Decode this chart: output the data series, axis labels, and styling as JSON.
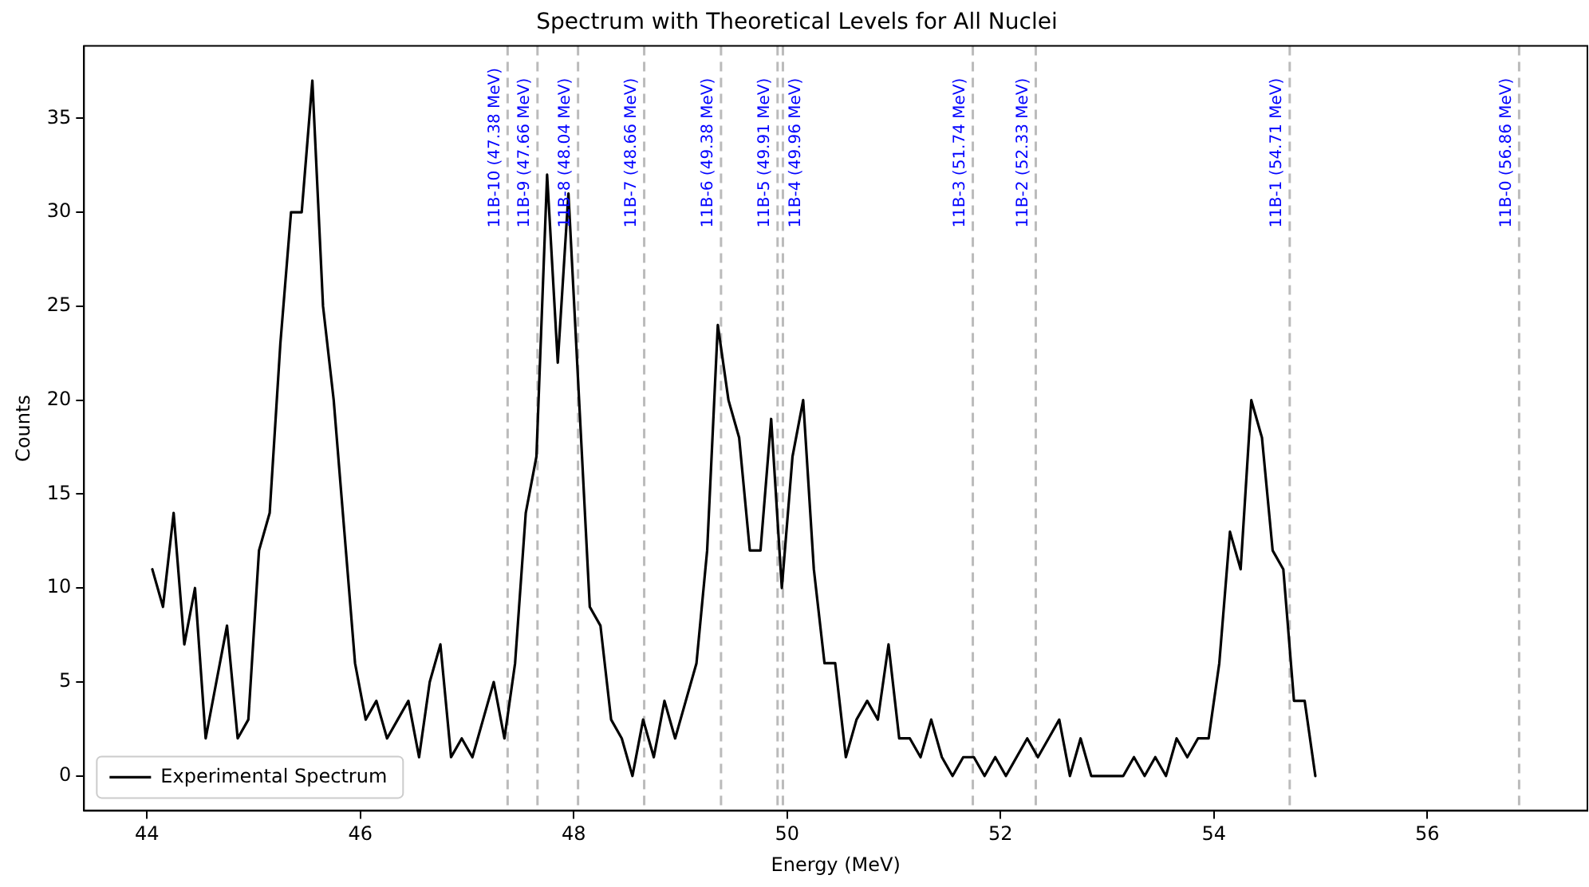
{
  "chart_data": {
    "type": "line",
    "title": "Spectrum with Theoretical Levels for All Nuclei",
    "xlabel": "Energy (MeV)",
    "ylabel": "Counts",
    "series": [
      {
        "name": "Experimental Spectrum",
        "color": "#000000",
        "x": [
          44.05,
          44.15,
          44.25,
          44.35,
          44.45,
          44.55,
          44.65,
          44.75,
          44.85,
          44.95,
          45.05,
          45.15,
          45.25,
          45.35,
          45.45,
          45.55,
          45.65,
          45.75,
          45.85,
          45.95,
          46.05,
          46.15,
          46.25,
          46.35,
          46.45,
          46.55,
          46.65,
          46.75,
          46.85,
          46.95,
          47.05,
          47.15,
          47.25,
          47.35,
          47.45,
          47.55,
          47.65,
          47.75,
          47.85,
          47.95,
          48.05,
          48.15,
          48.25,
          48.35,
          48.45,
          48.55,
          48.65,
          48.75,
          48.85,
          48.95,
          49.05,
          49.15,
          49.25,
          49.35,
          49.45,
          49.55,
          49.65,
          49.75,
          49.85,
          49.95,
          50.05,
          50.15,
          50.25,
          50.35,
          50.45,
          50.55,
          50.65,
          50.75,
          50.85,
          50.95,
          51.05,
          51.15,
          51.25,
          51.35,
          51.45,
          51.55,
          51.65,
          51.75,
          51.85,
          51.95,
          52.05,
          52.15,
          52.25,
          52.35,
          52.45,
          52.55,
          52.65,
          52.75,
          52.85,
          52.95,
          53.05,
          53.15,
          53.25,
          53.35,
          53.45,
          53.55,
          53.65,
          53.75,
          53.85,
          53.95,
          54.05,
          54.15,
          54.25,
          54.35,
          54.45,
          54.55,
          54.65,
          54.75,
          54.85,
          54.95
        ],
        "values": [
          11,
          9,
          14,
          7,
          10,
          2,
          5,
          8,
          2,
          3,
          12,
          14,
          23,
          30,
          30,
          37,
          25,
          20,
          13,
          6,
          3,
          4,
          2,
          3,
          4,
          1,
          5,
          7,
          1,
          2,
          1,
          3,
          5,
          2,
          6,
          14,
          17,
          32,
          22,
          31,
          20,
          9,
          8,
          3,
          2,
          0,
          3,
          1,
          4,
          2,
          4,
          6,
          12,
          24,
          20,
          18,
          12,
          12,
          19,
          10,
          17,
          20,
          11,
          6,
          6,
          1,
          3,
          4,
          3,
          7,
          2,
          2,
          1,
          3,
          1,
          0,
          1,
          1,
          0,
          1,
          0,
          1,
          2,
          1,
          2,
          3,
          0,
          2,
          0,
          0,
          0,
          0,
          1,
          0,
          1,
          0,
          2,
          1,
          2,
          2,
          6,
          13,
          11,
          20,
          18,
          12,
          11,
          4,
          4,
          0
        ]
      }
    ],
    "xlim": [
      43.41,
      57.5
    ],
    "xticks": [
      44,
      46,
      48,
      50,
      52,
      54,
      56
    ],
    "ylim": [
      -1.85,
      38.85
    ],
    "yticks": [
      0,
      5,
      10,
      15,
      20,
      25,
      30,
      35
    ],
    "ref_lines": [
      {
        "axis": "x",
        "value": 47.38,
        "label": "11B-10 (47.38 MeV)",
        "color": "#bbbbbb",
        "line_style": "dashed"
      },
      {
        "axis": "x",
        "value": 47.66,
        "label": "11B-9 (47.66 MeV)",
        "color": "#bbbbbb",
        "line_style": "dashed"
      },
      {
        "axis": "x",
        "value": 48.04,
        "label": "11B-8 (48.04 MeV)",
        "color": "#bbbbbb",
        "line_style": "dashed"
      },
      {
        "axis": "x",
        "value": 48.66,
        "label": "11B-7 (48.66 MeV)",
        "color": "#bbbbbb",
        "line_style": "dashed"
      },
      {
        "axis": "x",
        "value": 49.38,
        "label": "11B-6 (49.38 MeV)",
        "color": "#bbbbbb",
        "line_style": "dashed"
      },
      {
        "axis": "x",
        "value": 49.91,
        "label": "11B-5 (49.91 MeV)",
        "color": "#bbbbbb",
        "line_style": "dashed"
      },
      {
        "axis": "x",
        "value": 49.96,
        "label": "11B-4 (49.96 MeV)",
        "color": "#bbbbbb",
        "line_style": "dashed"
      },
      {
        "axis": "x",
        "value": 51.74,
        "label": "11B-3 (51.74 MeV)",
        "color": "#bbbbbb",
        "line_style": "dashed"
      },
      {
        "axis": "x",
        "value": 52.33,
        "label": "11B-2 (52.33 MeV)",
        "color": "#bbbbbb",
        "line_style": "dashed"
      },
      {
        "axis": "x",
        "value": 54.71,
        "label": "11B-1 (54.71 MeV)",
        "color": "#bbbbbb",
        "line_style": "dashed"
      },
      {
        "axis": "x",
        "value": 56.86,
        "label": "11B-0 (56.86 MeV)",
        "color": "#bbbbbb",
        "line_style": "dashed"
      }
    ],
    "grid": false,
    "legend": "bottom left",
    "marker": "none",
    "line_style": "solid"
  }
}
